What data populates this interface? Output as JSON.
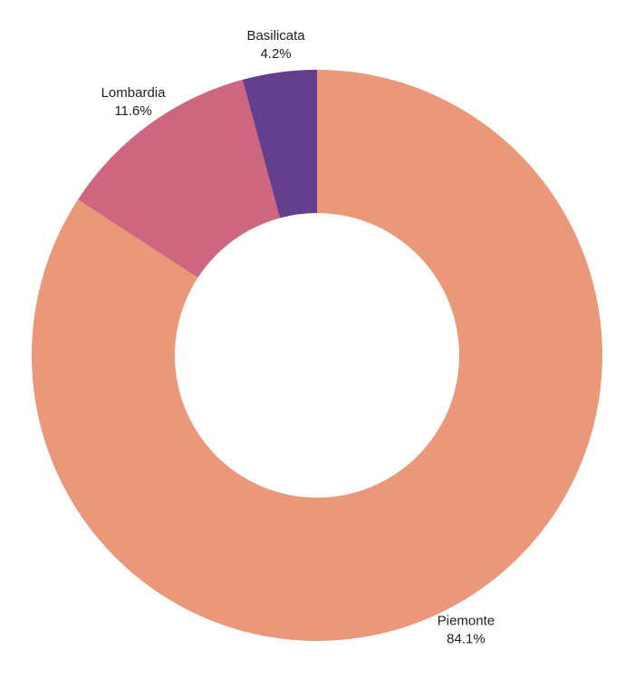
{
  "chart_data": {
    "type": "donut",
    "categories": [
      "Piemonte",
      "Lombardia",
      "Basilicata"
    ],
    "values": [
      84.1,
      11.6,
      4.2
    ],
    "value_labels": [
      "84.1%",
      "11.6%",
      "4.2%"
    ],
    "colors": [
      "#eb977a",
      "#cf6680",
      "#643f8e"
    ]
  }
}
